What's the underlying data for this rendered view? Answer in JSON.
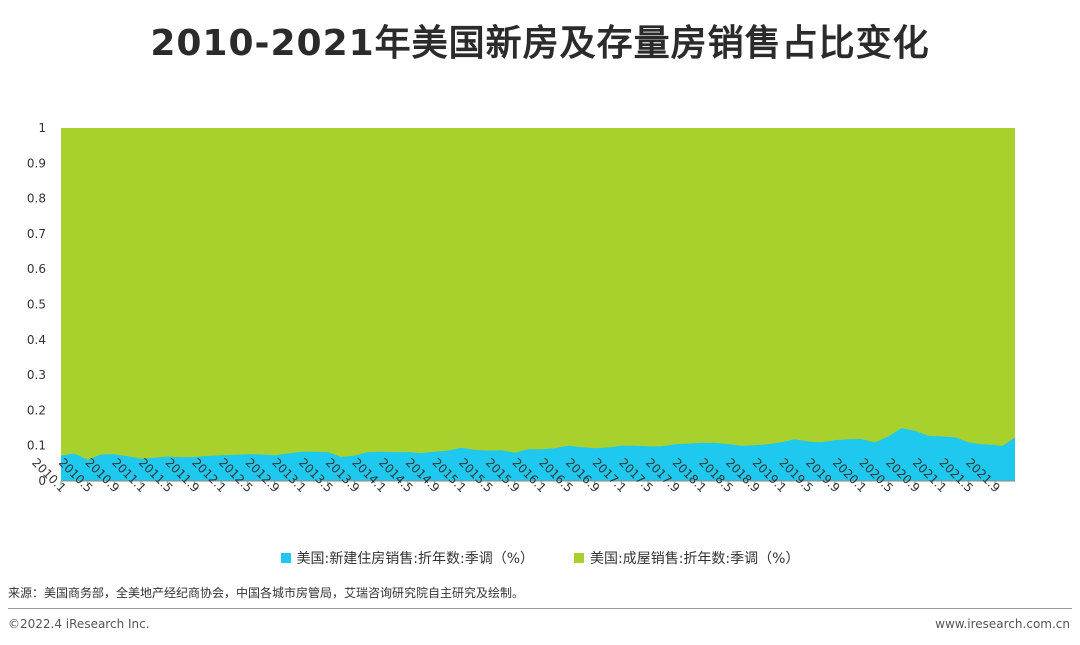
{
  "title": "2010-2021年美国新房及存量房销售占比变化",
  "source": "来源：美国商务部，全美地产经纪商协会，中国各城市房管局，艾瑞咨询研究院自主研究及绘制。",
  "footer": {
    "copyright": "©2022.4 iResearch Inc.",
    "website": "www.iresearch.com.cn"
  },
  "colors": {
    "new_home": "#1ec8ef",
    "existing_home": "#a9d12e"
  },
  "chart_data": {
    "type": "area",
    "stacked": true,
    "xlabel": "",
    "ylabel": "",
    "ylim": [
      0,
      1
    ],
    "y_ticks": [
      0,
      0.1,
      0.2,
      0.3,
      0.4,
      0.5,
      0.6,
      0.7,
      0.8,
      0.9,
      1
    ],
    "x_tick_labels": [
      "2010.1",
      "2010.5",
      "2010.9",
      "2011.1",
      "2011.5",
      "2011.9",
      "2012.1",
      "2012.5",
      "2012.9",
      "2013.1",
      "2013.5",
      "2013.9",
      "2014.1",
      "2014.5",
      "2014.9",
      "2015.1",
      "2015.5",
      "2015.9",
      "2016.1",
      "2016.5",
      "2016.9",
      "2017.1",
      "2017.5",
      "2017.9",
      "2018.1",
      "2018.5",
      "2018.9",
      "2019.1",
      "2019.5",
      "2019.9",
      "2020.1",
      "2020.5",
      "2020.9",
      "2021.1",
      "2021.5",
      "2021.9"
    ],
    "legend_position": "bottom",
    "series": [
      {
        "name": "美国:新建住房销售:折年数:季调（%）",
        "color": "#1ec8ef",
        "points": [
          [
            "2010.1",
            0.072
          ],
          [
            "2010.3",
            0.078
          ],
          [
            "2010.5",
            0.06
          ],
          [
            "2010.7",
            0.075
          ],
          [
            "2010.9",
            0.076
          ],
          [
            "2010.11",
            0.07
          ],
          [
            "2011.1",
            0.063
          ],
          [
            "2011.3",
            0.066
          ],
          [
            "2011.5",
            0.069
          ],
          [
            "2011.7",
            0.067
          ],
          [
            "2011.9",
            0.068
          ],
          [
            "2011.11",
            0.071
          ],
          [
            "2012.1",
            0.073
          ],
          [
            "2012.3",
            0.074
          ],
          [
            "2012.5",
            0.076
          ],
          [
            "2012.7",
            0.075
          ],
          [
            "2012.9",
            0.073
          ],
          [
            "2012.11",
            0.078
          ],
          [
            "2013.1",
            0.083
          ],
          [
            "2013.3",
            0.083
          ],
          [
            "2013.5",
            0.082
          ],
          [
            "2013.7",
            0.068
          ],
          [
            "2013.9",
            0.072
          ],
          [
            "2013.11",
            0.082
          ],
          [
            "2014.1",
            0.083
          ],
          [
            "2014.3",
            0.082
          ],
          [
            "2014.5",
            0.082
          ],
          [
            "2014.7",
            0.079
          ],
          [
            "2014.9",
            0.083
          ],
          [
            "2014.11",
            0.086
          ],
          [
            "2015.1",
            0.094
          ],
          [
            "2015.3",
            0.088
          ],
          [
            "2015.5",
            0.086
          ],
          [
            "2015.7",
            0.087
          ],
          [
            "2015.9",
            0.08
          ],
          [
            "2015.11",
            0.09
          ],
          [
            "2016.1",
            0.09
          ],
          [
            "2016.3",
            0.093
          ],
          [
            "2016.5",
            0.1
          ],
          [
            "2016.7",
            0.096
          ],
          [
            "2016.9",
            0.093
          ],
          [
            "2016.11",
            0.095
          ],
          [
            "2017.1",
            0.1
          ],
          [
            "2017.3",
            0.1
          ],
          [
            "2017.5",
            0.098
          ],
          [
            "2017.7",
            0.098
          ],
          [
            "2017.9",
            0.104
          ],
          [
            "2017.11",
            0.106
          ],
          [
            "2018.1",
            0.108
          ],
          [
            "2018.3",
            0.108
          ],
          [
            "2018.5",
            0.104
          ],
          [
            "2018.7",
            0.1
          ],
          [
            "2018.9",
            0.101
          ],
          [
            "2018.11",
            0.104
          ],
          [
            "2019.1",
            0.11
          ],
          [
            "2019.3",
            0.118
          ],
          [
            "2019.5",
            0.112
          ],
          [
            "2019.7",
            0.11
          ],
          [
            "2019.9",
            0.116
          ],
          [
            "2019.11",
            0.118
          ],
          [
            "2020.1",
            0.119
          ],
          [
            "2020.3",
            0.109
          ],
          [
            "2020.5",
            0.126
          ],
          [
            "2020.7",
            0.15
          ],
          [
            "2020.9",
            0.142
          ],
          [
            "2020.11",
            0.128
          ],
          [
            "2021.1",
            0.126
          ],
          [
            "2021.3",
            0.124
          ],
          [
            "2021.5",
            0.11
          ],
          [
            "2021.7",
            0.104
          ],
          [
            "2021.9",
            0.102
          ],
          [
            "2021.10",
            0.099
          ],
          [
            "2021.11",
            0.11
          ],
          [
            "2021.12",
            0.124
          ]
        ]
      },
      {
        "name": "美国:成屋销售:折年数:季调（%）",
        "color": "#a9d12e",
        "note_complement": "share = 1 - new home share",
        "stack_top": 1
      }
    ]
  }
}
